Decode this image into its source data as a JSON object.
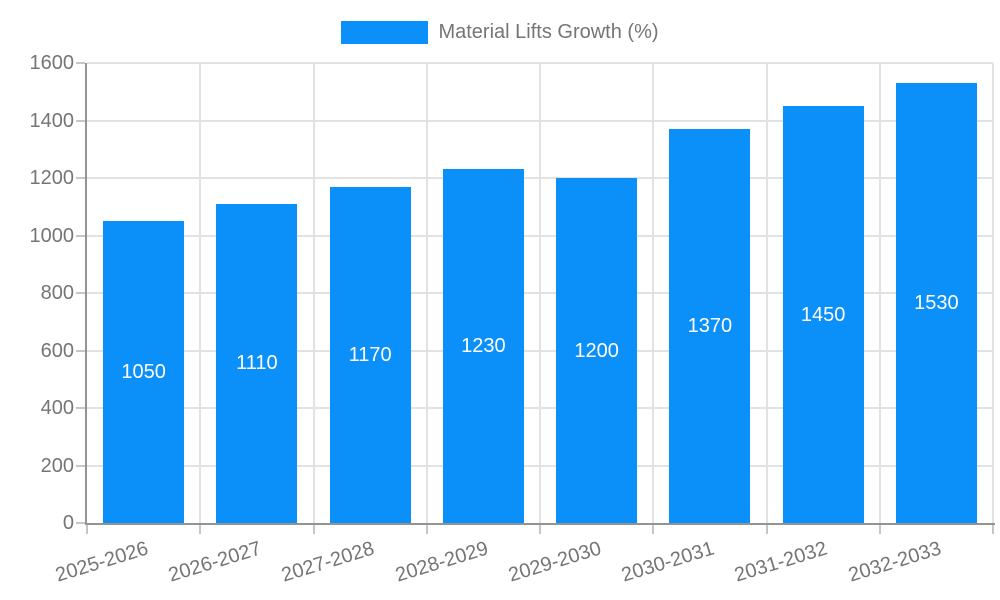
{
  "legend": {
    "label": "Material Lifts Growth (%)"
  },
  "colors": {
    "bar": "#0b8ff9",
    "grid": "#e2e2e2",
    "axis": "#939393",
    "tick": "#c6c6c6",
    "tick_label": "#757575",
    "value_label": "#ffffff",
    "background": "#ffffff"
  },
  "chart_data": {
    "type": "bar",
    "title": "Material Lifts Growth (%)",
    "categories": [
      "2025-2026",
      "2026-2027",
      "2027-2028",
      "2028-2029",
      "2029-2030",
      "2030-2031",
      "2031-2032",
      "2032-2033"
    ],
    "values": [
      1050,
      1110,
      1170,
      1230,
      1200,
      1370,
      1450,
      1530
    ],
    "xlabel": "",
    "ylabel": "",
    "ylim": [
      0,
      1600
    ],
    "yticks": [
      0,
      200,
      400,
      600,
      800,
      1000,
      1200,
      1400,
      1600
    ],
    "grid": true,
    "legend_position": "top",
    "value_labels": "inside-center",
    "x_label_rotation_deg": -17
  }
}
